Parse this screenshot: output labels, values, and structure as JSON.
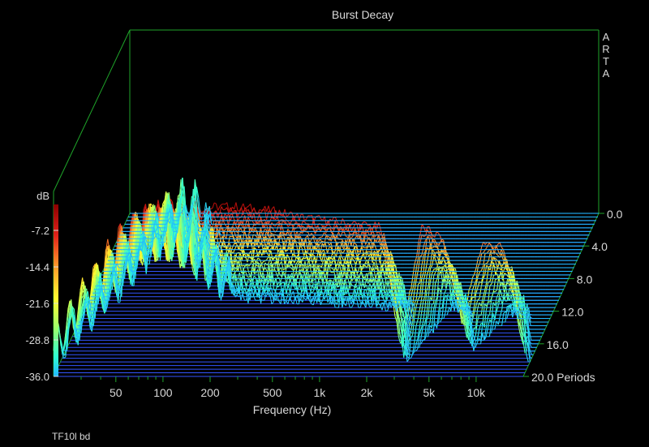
{
  "chart_data": {
    "type": "waterfall",
    "title": "Burst Decay",
    "watermark": "ARTA",
    "xlabel": "Frequency (Hz)",
    "x_ticks": [
      "50",
      "100",
      "200",
      "500",
      "1k",
      "2k",
      "5k",
      "10k"
    ],
    "x_tick_values": [
      50,
      100,
      200,
      500,
      1000,
      2000,
      5000,
      10000
    ],
    "xlim": [
      20,
      20000
    ],
    "x_scale": "log",
    "colorbar_label": "dB",
    "colorbar_ticks": [
      "-7.2",
      "-14.4",
      "-21.6",
      "-28.8",
      "-36.0"
    ],
    "zlim": [
      -36,
      0
    ],
    "z_ticks": [
      "0.0",
      "4.0",
      "8.0",
      "12.0",
      "16.0",
      "20.0 Periods"
    ],
    "periods_range": [
      0,
      20
    ],
    "slice_count": 46,
    "footer_text": "TF10l bd",
    "colors": {
      "background": "#000000",
      "frame": "#1fa52a",
      "text": "#d8d8d8",
      "floor": "#3355ff"
    },
    "series": [
      {
        "name": "",
        "period": 0,
        "values": [
          -30,
          -24,
          -18,
          -12,
          -8,
          -6,
          -4.5,
          -3.5,
          -3,
          -3,
          -3.5,
          -4,
          -5,
          -5.5,
          -6,
          -6.5,
          -7,
          -30,
          -7,
          -9,
          -25,
          -10,
          -11,
          -30
        ]
      }
    ]
  }
}
